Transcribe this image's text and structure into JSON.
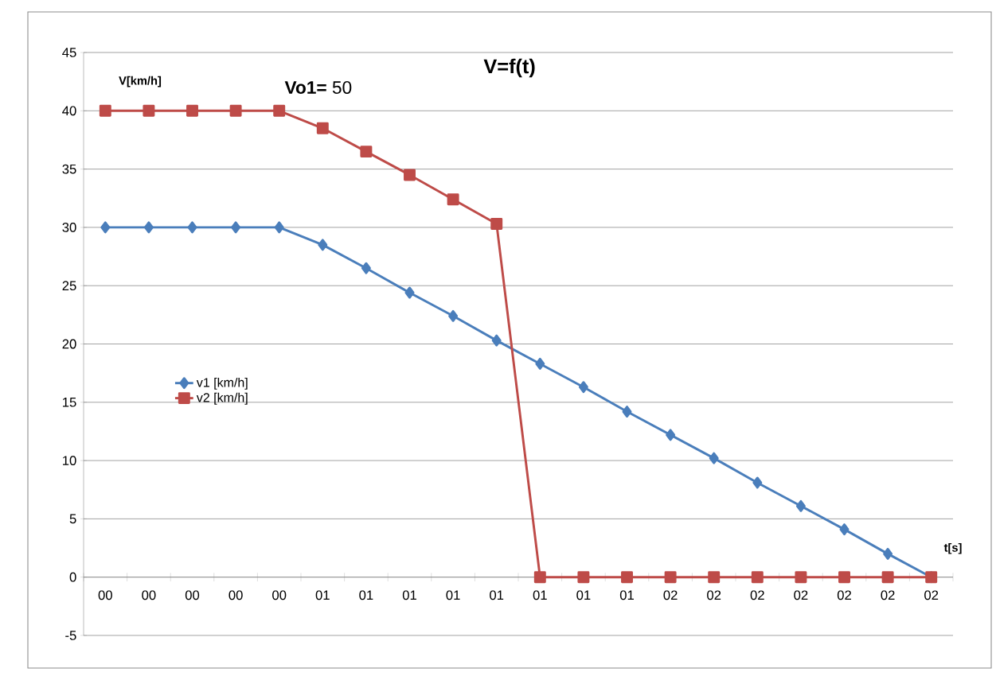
{
  "chart_data": {
    "type": "line",
    "title": "V=f(t)",
    "ylabel": "V[km/h]",
    "xlabel": "t[s]",
    "annotations": [
      "**Vo1=** 50"
    ],
    "categories": [
      "00",
      "00",
      "00",
      "00",
      "00",
      "01",
      "01",
      "01",
      "01",
      "01",
      "01",
      "01",
      "01",
      "02",
      "02",
      "02",
      "02",
      "02",
      "02",
      "02"
    ],
    "series": [
      {
        "name": "v1 [km/h]",
        "color": "#4a7ebb",
        "marker": "diamond",
        "values": [
          30,
          30,
          30,
          30,
          30,
          28.5,
          26.5,
          24.4,
          22.4,
          20.3,
          18.3,
          16.3,
          14.2,
          12.2,
          10.2,
          8.1,
          6.1,
          4.1,
          2.0,
          0
        ]
      },
      {
        "name": "v2 [km/h]",
        "color": "#be4b48",
        "marker": "square",
        "values": [
          40,
          40,
          40,
          40,
          40,
          38.5,
          36.5,
          34.5,
          32.4,
          30.3,
          0,
          0,
          0,
          0,
          0,
          0,
          0,
          0,
          0,
          0
        ]
      }
    ],
    "ylim": [
      -5,
      45
    ],
    "yticks": [
      -5,
      0,
      5,
      10,
      15,
      20,
      25,
      30,
      35,
      40,
      45
    ],
    "grid": "y",
    "legend": "left"
  }
}
